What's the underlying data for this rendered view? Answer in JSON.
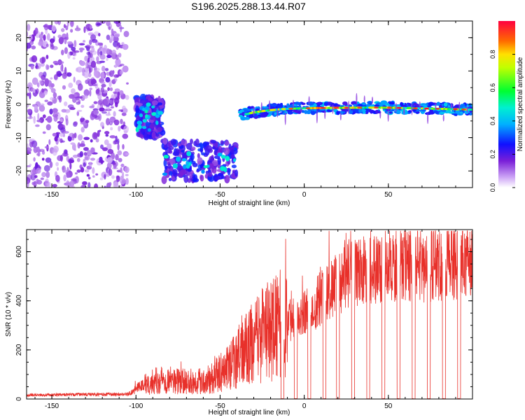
{
  "title": "S196.2025.288.13.44.R07",
  "colors": {
    "snr_line": "#e8302a",
    "axis": "#000000"
  },
  "chart_data": [
    {
      "type": "heatmap",
      "xlabel": "Height of straight line (km)",
      "ylabel": "Frequency (Hz)",
      "xlim": [
        -165,
        100
      ],
      "ylim": [
        -25,
        25
      ],
      "xticks": [
        -150,
        -100,
        -50,
        0,
        50
      ],
      "yticks": [
        -20,
        -10,
        0,
        10,
        20
      ],
      "xtick_labels": [
        "-150",
        "-100",
        "-50",
        "0",
        "50"
      ],
      "ytick_labels": [
        "-20",
        "-10",
        "0",
        "10",
        "20"
      ],
      "colorbar": {
        "label": "Normalized spectral amplitude",
        "range": [
          0,
          1
        ],
        "ticks": [
          0,
          0.2,
          0.4,
          0.6,
          0.8
        ],
        "tick_labels": [
          "0.0",
          "0.2",
          "0.4",
          "0.6",
          "0.8"
        ],
        "colormap": "rainbow"
      },
      "segments": [
        {
          "x_range": [
            -165,
            -105
          ],
          "frequency_range": [
            -25,
            25
          ],
          "character": "noise"
        },
        {
          "x_range": [
            -100,
            -84
          ],
          "frequency_center": -4,
          "amplitude": 0.3
        },
        {
          "x_range": [
            -84,
            -40
          ],
          "frequency_center": -17,
          "amplitude": 0.35
        },
        {
          "x_range": [
            -38,
            100
          ],
          "frequency_center": -1,
          "amplitude": 0.9
        }
      ]
    },
    {
      "type": "line",
      "xlabel": "Height of straight line (km)",
      "ylabel": "SNR (10 * v/v)",
      "xlim": [
        -165,
        100
      ],
      "ylim": [
        0,
        690
      ],
      "xticks": [
        -150,
        -100,
        -50,
        0,
        50
      ],
      "yticks": [
        0,
        200,
        400,
        600
      ],
      "xtick_labels": [
        "-150",
        "-100",
        "-50",
        "0",
        "50"
      ],
      "ytick_labels": [
        "0",
        "200",
        "400",
        "600"
      ],
      "series": [
        {
          "name": "SNR",
          "envelope": [
            {
              "x": -165,
              "y": 20
            },
            {
              "x": -105,
              "y": 25
            },
            {
              "x": -95,
              "y": 60
            },
            {
              "x": -85,
              "y": 80
            },
            {
              "x": -70,
              "y": 70
            },
            {
              "x": -55,
              "y": 80
            },
            {
              "x": -45,
              "y": 130
            },
            {
              "x": -35,
              "y": 200
            },
            {
              "x": -25,
              "y": 260
            },
            {
              "x": -15,
              "y": 300
            },
            {
              "x": -5,
              "y": 340
            },
            {
              "x": 5,
              "y": 380
            },
            {
              "x": 15,
              "y": 440
            },
            {
              "x": 25,
              "y": 500
            },
            {
              "x": 35,
              "y": 520
            },
            {
              "x": 50,
              "y": 540
            },
            {
              "x": 70,
              "y": 540
            },
            {
              "x": 85,
              "y": 560
            },
            {
              "x": 100,
              "y": 560
            }
          ],
          "dropouts_to_zero_at_x": [
            -13,
            -5,
            3,
            12,
            20,
            29,
            38,
            47,
            56,
            65,
            74,
            83,
            92
          ]
        }
      ]
    }
  ]
}
